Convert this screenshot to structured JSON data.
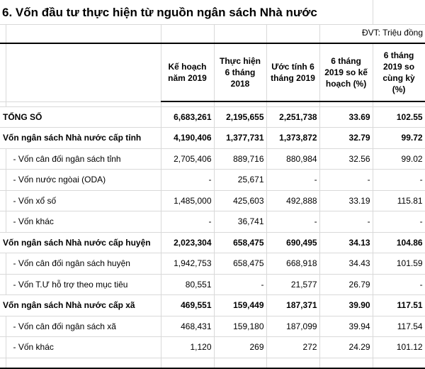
{
  "title": "6. Vốn đầu tư thực hiện từ nguồn ngân sách Nhà nước",
  "unit": "ĐVT: Triệu đồng",
  "columns": [
    "Kế hoạch năm 2019",
    "Thực hiện 6 tháng 2018",
    "Ước tính 6 tháng 2019",
    "6 tháng 2019 so kế hoạch (%)",
    "6 tháng 2019 so cùng kỳ (%)"
  ],
  "rows": [
    {
      "label": "TỔNG SỐ",
      "bold": true,
      "values": [
        "6,683,261",
        "2,195,655",
        "2,251,738",
        "33.69",
        "102.55"
      ]
    },
    {
      "label": "Vốn ngân sách Nhà nước cấp tỉnh",
      "bold": true,
      "values": [
        "4,190,406",
        "1,377,731",
        "1,373,872",
        "32.79",
        "99.72"
      ]
    },
    {
      "label": "- Vốn cân đối ngân sách tỉnh",
      "bold": false,
      "values": [
        "2,705,406",
        "889,716",
        "880,984",
        "32.56",
        "99.02"
      ]
    },
    {
      "label": "- Vốn nước ngòai (ODA)",
      "bold": false,
      "values": [
        "-",
        "25,671",
        "-",
        "-",
        "-"
      ]
    },
    {
      "label": "- Vốn xổ số",
      "bold": false,
      "values": [
        "1,485,000",
        "425,603",
        "492,888",
        "33.19",
        "115.81"
      ]
    },
    {
      "label": "- Vốn khác",
      "bold": false,
      "values": [
        "-",
        "36,741",
        "-",
        "-",
        "-"
      ]
    },
    {
      "label": "Vốn ngân sách Nhà nước cấp huyện",
      "bold": true,
      "values": [
        "2,023,304",
        "658,475",
        "690,495",
        "34.13",
        "104.86"
      ]
    },
    {
      "label": "- Vốn cân đối ngân sách huyện",
      "bold": false,
      "values": [
        "1,942,753",
        "658,475",
        "668,918",
        "34.43",
        "101.59"
      ]
    },
    {
      "label": "- Vốn T.Ư hỗ trợ theo mục tiêu",
      "bold": false,
      "values": [
        "80,551",
        "-",
        "21,577",
        "26.79",
        "-"
      ]
    },
    {
      "label": "Vốn ngân sách Nhà nước cấp xã",
      "bold": true,
      "values": [
        "469,551",
        "159,449",
        "187,371",
        "39.90",
        "117.51"
      ]
    },
    {
      "label": "- Vốn cân đối ngân sách xã",
      "bold": false,
      "values": [
        "468,431",
        "159,180",
        "187,099",
        "39.94",
        "117.54"
      ]
    },
    {
      "label": "- Vốn khác",
      "bold": false,
      "values": [
        "1,120",
        "269",
        "272",
        "24.29",
        "101.12"
      ]
    }
  ]
}
